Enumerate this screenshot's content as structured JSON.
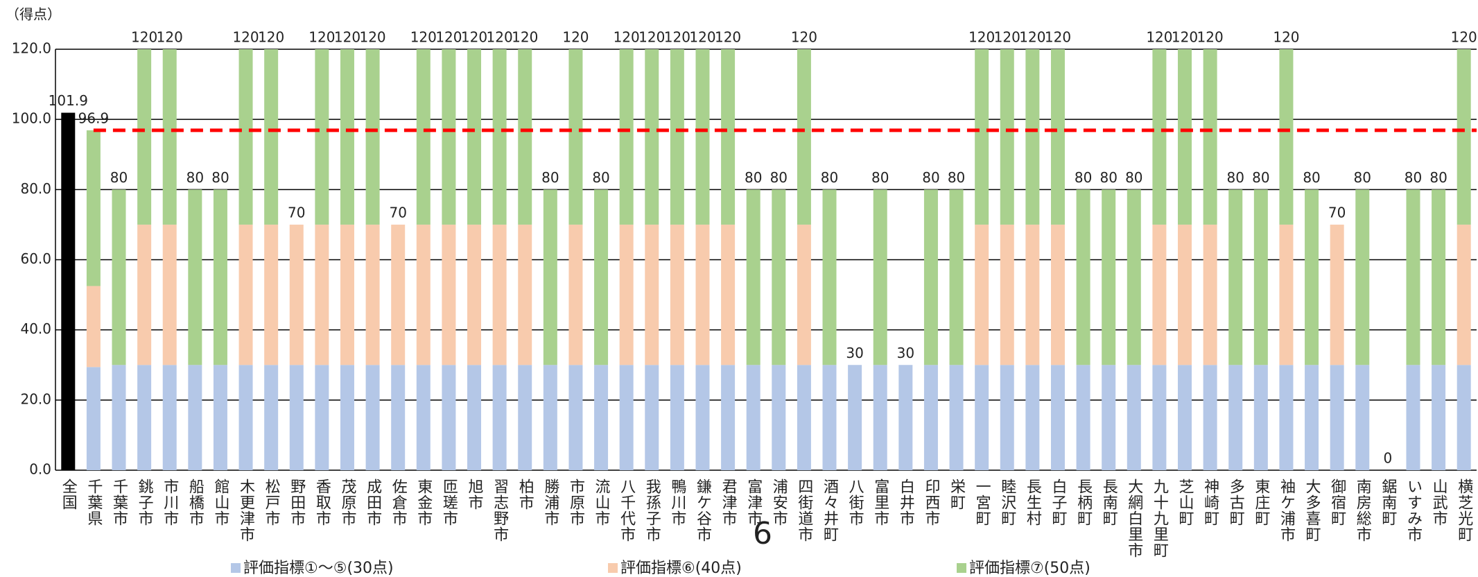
{
  "page_number": "6",
  "chart_data": {
    "type": "stacked_bar",
    "y_label": "（得点）",
    "categories": [
      "全国",
      "千葉県",
      "千葉市",
      "銚子市",
      "市川市",
      "船橋市",
      "館山市",
      "木更津市",
      "松戸市",
      "野田市",
      "香取市",
      "茂原市",
      "成田市",
      "佐倉市",
      "東金市",
      "匝瑳市",
      "旭市",
      "習志野市",
      "柏市",
      "勝浦市",
      "市原市",
      "流山市",
      "八千代市",
      "我孫子市",
      "鴨川市",
      "鎌ケ谷市",
      "君津市",
      "富津市",
      "浦安市",
      "四街道市",
      "酒々井町",
      "八街市",
      "富里市",
      "白井市",
      "印西市",
      "栄町",
      "一宮町",
      "睦沢町",
      "長生村",
      "白子町",
      "長柄町",
      "長南町",
      "大網白里市",
      "九十九里町",
      "芝山町",
      "神崎町",
      "多古町",
      "東庄町",
      "袖ケ浦市",
      "大多喜町",
      "御宿町",
      "南房総市",
      "鋸南町",
      "いすみ市",
      "山武市",
      "横芝光町"
    ],
    "series": [
      {
        "name": "評価指標①～⑤(30点)",
        "color": "#b4c7e7",
        "values": [
          null,
          29.4,
          30,
          30,
          30,
          30,
          30,
          30,
          30,
          30,
          30,
          30,
          30,
          30,
          30,
          30,
          30,
          30,
          30,
          30,
          30,
          30,
          30,
          30,
          30,
          30,
          30,
          30,
          30,
          30,
          30,
          30,
          30,
          30,
          30,
          30,
          30,
          30,
          30,
          30,
          30,
          30,
          30,
          30,
          30,
          30,
          30,
          30,
          30,
          30,
          30,
          30,
          0,
          30,
          30,
          30
        ]
      },
      {
        "name": "評価指標⑥(40点)",
        "color": "#f8cbad",
        "values": [
          null,
          23.1,
          0,
          40,
          40,
          0,
          0,
          40,
          40,
          40,
          40,
          40,
          40,
          40,
          40,
          40,
          40,
          40,
          40,
          0,
          40,
          0,
          40,
          40,
          40,
          40,
          40,
          0,
          0,
          40,
          0,
          0,
          0,
          0,
          0,
          0,
          40,
          40,
          40,
          40,
          0,
          0,
          0,
          40,
          40,
          40,
          0,
          0,
          40,
          0,
          40,
          0,
          0,
          0,
          0,
          40
        ]
      },
      {
        "name": "評価指標⑦(50点)",
        "color": "#a9d18e",
        "values": [
          null,
          44.4,
          50,
          50,
          50,
          50,
          50,
          50,
          50,
          0,
          50,
          50,
          50,
          0,
          50,
          50,
          50,
          50,
          50,
          50,
          50,
          50,
          50,
          50,
          50,
          50,
          50,
          50,
          50,
          50,
          50,
          0,
          50,
          0,
          50,
          50,
          50,
          50,
          50,
          50,
          50,
          50,
          50,
          50,
          50,
          50,
          50,
          50,
          50,
          50,
          0,
          50,
          0,
          50,
          50,
          50
        ]
      }
    ],
    "totals": [
      null,
      96.9,
      80,
      120,
      120,
      80,
      80,
      120,
      120,
      70,
      120,
      120,
      120,
      70,
      120,
      120,
      120,
      120,
      120,
      80,
      120,
      80,
      120,
      120,
      120,
      120,
      120,
      80,
      80,
      120,
      80,
      30,
      80,
      30,
      80,
      80,
      120,
      120,
      120,
      120,
      80,
      80,
      80,
      120,
      120,
      120,
      80,
      80,
      120,
      80,
      70,
      80,
      0,
      80,
      80,
      120
    ],
    "highlight": {
      "value": 101.9,
      "color": "#000000"
    },
    "reference_line": {
      "value": 96.9,
      "color": "#ff0000"
    },
    "ylim": [
      0,
      120
    ],
    "yticks": [
      {
        "value": 0,
        "label": "0.0"
      },
      {
        "value": 20,
        "label": "20.0"
      },
      {
        "value": 40,
        "label": "40.0"
      },
      {
        "value": 60,
        "label": "60.0"
      },
      {
        "value": 80,
        "label": "80.0"
      },
      {
        "value": 100,
        "label": "100.0"
      },
      {
        "value": 120,
        "label": "120.0"
      }
    ],
    "grid": true
  }
}
